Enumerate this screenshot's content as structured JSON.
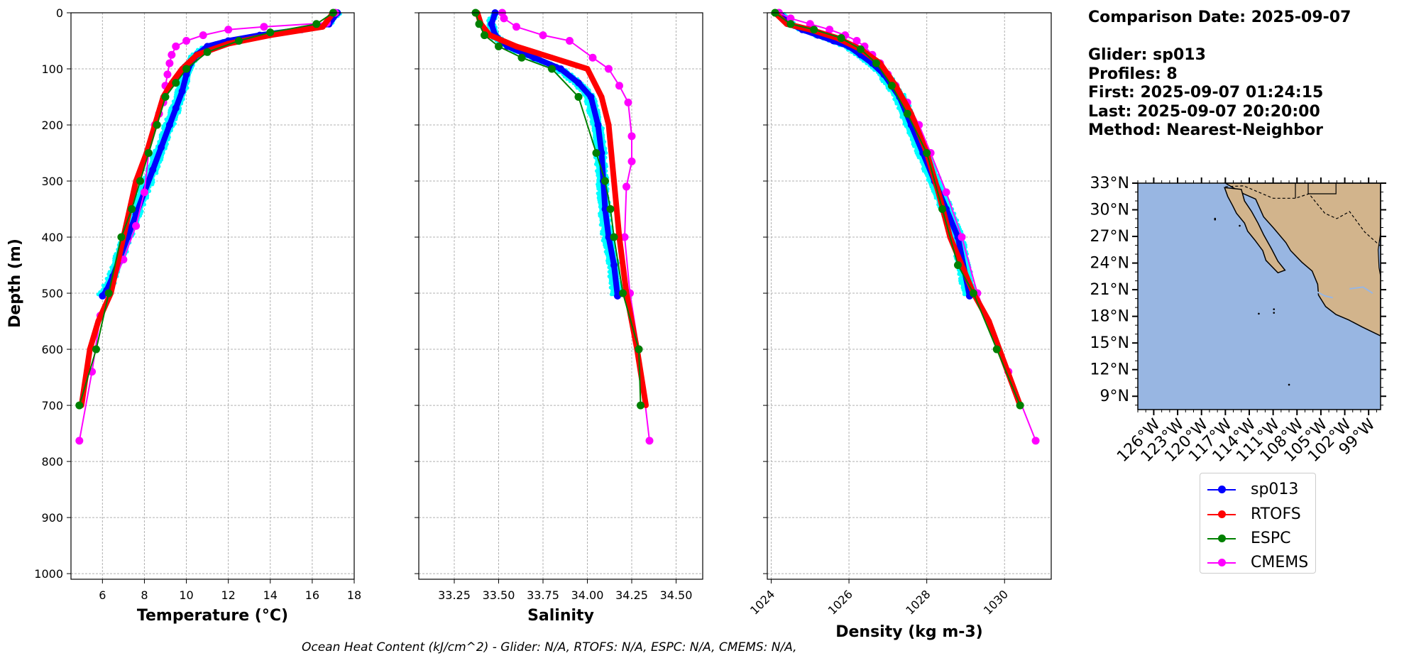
{
  "info": {
    "comparison_date": "Comparison Date: 2025-09-07",
    "glider": "Glider: sp013",
    "profiles": "Profiles: 8",
    "first": "First: 2025-09-07 01:24:15",
    "last": "Last: 2025-09-07 20:20:00",
    "method": "Method: Nearest-Neighbor"
  },
  "footer": "Ocean Heat Content (kJ/cm^2) - Glider: N/A,  RTOFS: N/A,  ESPC: N/A,  CMEMS: N/A,",
  "legend": [
    {
      "name": "sp013",
      "color": "#0000ff"
    },
    {
      "name": "RTOFS",
      "color": "#ff0000"
    },
    {
      "name": "ESPC",
      "color": "#008000"
    },
    {
      "name": "CMEMS",
      "color": "#ff00ff"
    }
  ],
  "colors": {
    "raw_profiles": "#00ffff",
    "sp013": "#0000ff",
    "RTOFS": "#ff0000",
    "ESPC": "#008000",
    "CMEMS": "#ff00ff",
    "ocean": "#98b6e2",
    "land": "#d2b48c"
  },
  "chart_data": [
    {
      "type": "line",
      "xlabel": "Temperature (°C)",
      "ylabel": "Depth (m)",
      "xlim": [
        4.5,
        18
      ],
      "ylim": [
        1010,
        0
      ],
      "xticks": [
        6,
        8,
        10,
        12,
        14,
        16,
        18
      ],
      "yticks": [
        0,
        100,
        200,
        300,
        400,
        500,
        600,
        700,
        800,
        900,
        1000
      ],
      "grid": true,
      "series": [
        {
          "name": "sp013",
          "x": [
            17.2,
            16.8,
            15.5,
            13.5,
            12.0,
            11.0,
            10.5,
            10.2,
            10.0,
            9.8,
            9.5,
            9.2,
            8.8,
            8.4,
            8.0,
            7.6,
            7.2,
            6.8,
            6.5,
            6.2,
            6.0
          ],
          "y": [
            0,
            20,
            30,
            40,
            50,
            60,
            75,
            90,
            110,
            140,
            170,
            200,
            240,
            280,
            320,
            360,
            400,
            440,
            470,
            495,
            505
          ]
        },
        {
          "name": "RTOFS",
          "x": [
            17.0,
            16.5,
            14.0,
            12.0,
            10.5,
            9.8,
            9.3,
            8.9,
            8.5,
            8.1,
            7.6,
            7.0,
            6.4,
            5.8,
            5.4,
            5.0
          ],
          "y": [
            0,
            25,
            40,
            55,
            75,
            100,
            125,
            150,
            200,
            250,
            300,
            400,
            500,
            550,
            600,
            700
          ]
        },
        {
          "name": "ESPC",
          "x": [
            17.0,
            16.2,
            14.0,
            12.5,
            11.0,
            10.0,
            9.5,
            9.0,
            8.6,
            8.2,
            7.8,
            7.4,
            6.9,
            6.3,
            5.7,
            4.9
          ],
          "y": [
            0,
            20,
            35,
            50,
            70,
            100,
            125,
            150,
            200,
            250,
            300,
            350,
            400,
            500,
            600,
            700
          ]
        },
        {
          "name": "CMEMS",
          "x": [
            17.1,
            16.7,
            13.7,
            12.0,
            10.8,
            10.0,
            9.5,
            9.3,
            9.2,
            9.1,
            9.0,
            8.9,
            8.7,
            8.5,
            8.2,
            8.0,
            7.6,
            7.0,
            6.3,
            5.9,
            5.5,
            4.9
          ],
          "y": [
            0,
            18,
            25,
            30,
            40,
            50,
            60,
            75,
            90,
            110,
            130,
            160,
            180,
            200,
            250,
            320,
            380,
            440,
            500,
            540,
            640,
            763
          ]
        }
      ]
    },
    {
      "type": "line",
      "xlabel": "Salinity",
      "ylabel": "",
      "xlim": [
        33.05,
        34.65
      ],
      "ylim": [
        1010,
        0
      ],
      "xticks": [
        33.25,
        33.5,
        33.75,
        34.0,
        34.25,
        34.5
      ],
      "grid": true,
      "series": [
        {
          "name": "sp013",
          "x": [
            33.48,
            33.46,
            33.48,
            33.55,
            33.7,
            33.85,
            33.95,
            34.02,
            34.06,
            34.08,
            34.09,
            34.1,
            34.12,
            34.15,
            34.17
          ],
          "y": [
            0,
            20,
            40,
            60,
            80,
            100,
            125,
            150,
            200,
            250,
            300,
            350,
            400,
            450,
            505
          ]
        },
        {
          "name": "RTOFS",
          "x": [
            33.38,
            33.4,
            33.45,
            33.6,
            33.8,
            34.0,
            34.08,
            34.12,
            34.15,
            34.18,
            34.22,
            34.28,
            34.33
          ],
          "y": [
            0,
            20,
            40,
            60,
            80,
            100,
            150,
            200,
            300,
            400,
            500,
            600,
            700
          ]
        },
        {
          "name": "ESPC",
          "x": [
            33.37,
            33.39,
            33.42,
            33.5,
            33.63,
            33.8,
            33.95,
            34.05,
            34.1,
            34.13,
            34.15,
            34.2,
            34.29,
            34.3
          ],
          "y": [
            0,
            20,
            40,
            60,
            80,
            100,
            150,
            250,
            300,
            350,
            400,
            500,
            600,
            700
          ]
        },
        {
          "name": "CMEMS",
          "x": [
            33.52,
            33.53,
            33.6,
            33.75,
            33.9,
            34.03,
            34.12,
            34.18,
            34.23,
            34.25,
            34.25,
            34.22,
            34.21,
            34.24,
            34.29,
            34.35
          ],
          "y": [
            0,
            10,
            25,
            40,
            50,
            80,
            100,
            130,
            160,
            220,
            265,
            310,
            400,
            500,
            600,
            763
          ]
        }
      ]
    },
    {
      "type": "line",
      "xlabel": "Density (kg m-3)",
      "ylabel": "",
      "xlim": [
        1023.9,
        1031.2
      ],
      "ylim": [
        1010,
        0
      ],
      "xticks": [
        1024,
        1026,
        1028,
        1030
      ],
      "grid": true,
      "series": [
        {
          "name": "sp013",
          "x": [
            1024.2,
            1024.5,
            1024.8,
            1025.2,
            1025.6,
            1026.0,
            1026.3,
            1026.6,
            1026.9,
            1027.3,
            1027.6,
            1027.9,
            1028.2,
            1028.5,
            1028.8,
            1029.1
          ],
          "y": [
            0,
            20,
            30,
            40,
            50,
            60,
            75,
            90,
            110,
            150,
            200,
            250,
            300,
            350,
            400,
            505
          ]
        },
        {
          "name": "RTOFS",
          "x": [
            1024.1,
            1024.4,
            1025.0,
            1025.7,
            1026.3,
            1026.8,
            1027.2,
            1027.6,
            1028.0,
            1028.3,
            1028.6,
            1029.2,
            1029.6,
            1030.4
          ],
          "y": [
            0,
            20,
            30,
            45,
            65,
            90,
            130,
            180,
            250,
            320,
            400,
            500,
            550,
            700
          ]
        },
        {
          "name": "ESPC",
          "x": [
            1024.1,
            1024.5,
            1025.1,
            1025.8,
            1026.3,
            1026.7,
            1027.1,
            1027.5,
            1028.0,
            1028.4,
            1028.8,
            1029.2,
            1029.8,
            1030.4
          ],
          "y": [
            0,
            20,
            30,
            45,
            65,
            90,
            130,
            180,
            250,
            350,
            450,
            500,
            600,
            700
          ]
        },
        {
          "name": "CMEMS",
          "x": [
            1024.2,
            1024.5,
            1025.0,
            1025.5,
            1025.9,
            1026.2,
            1026.4,
            1026.6,
            1026.8,
            1027.0,
            1027.2,
            1027.5,
            1027.8,
            1028.1,
            1028.5,
            1028.9,
            1029.3,
            1030.1,
            1030.8
          ],
          "y": [
            0,
            10,
            20,
            30,
            40,
            50,
            60,
            75,
            90,
            110,
            130,
            160,
            200,
            250,
            320,
            400,
            500,
            640,
            763
          ]
        }
      ]
    }
  ],
  "map": {
    "lat_labels": [
      "33°N",
      "30°N",
      "27°N",
      "24°N",
      "21°N",
      "18°N",
      "15°N",
      "12°N",
      "9°N"
    ],
    "lon_labels": [
      "126°W",
      "123°W",
      "120°W",
      "117°W",
      "114°W",
      "111°W",
      "108°W",
      "105°W",
      "102°W",
      "99°W"
    ]
  }
}
